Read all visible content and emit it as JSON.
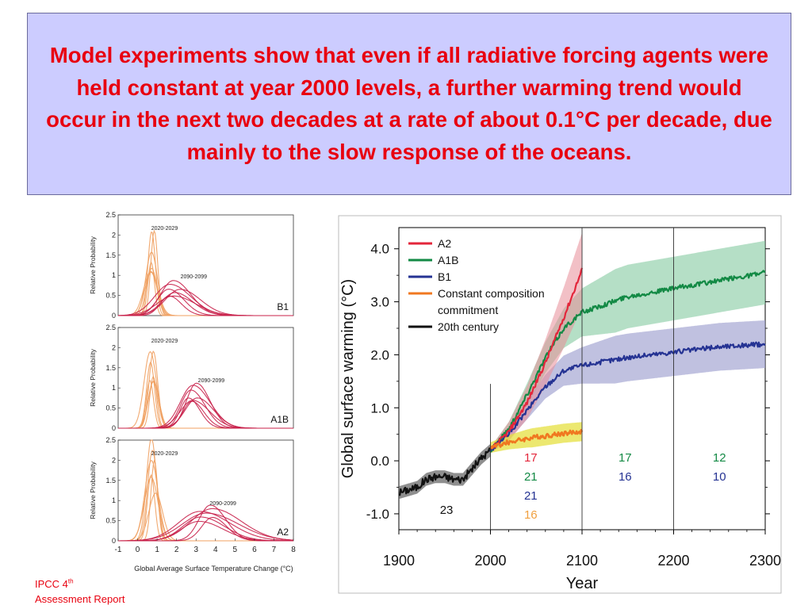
{
  "header": {
    "text": "Model experiments show that even if all radiative forcing agents were held constant at year 2000 levels, a further warming trend would occur in the next two decades at a rate of about 0.1°C per decade, due mainly to the slow response of the oceans."
  },
  "footer": {
    "source": "IPCC 4",
    "source_sup": "th",
    "source_line2": "Assessment Report"
  },
  "colors": {
    "title_red": "#e8000f",
    "header_bg": "#ccccff",
    "a2": "#e3263b",
    "a1b": "#138a45",
    "b1": "#253393",
    "commit": "#f07820",
    "c20": "#111111",
    "pdf_early": "#f0a060",
    "pdf_late": "#c8204a"
  },
  "chart_data": [
    {
      "type": "line",
      "panel": "pdf-B1",
      "ylabel": "Relative Probability",
      "panel_label": "B1",
      "annotations": [
        "2020-2029",
        "2090-2099"
      ],
      "ylim": [
        0,
        2.5
      ],
      "yticks": [
        "0",
        "0.5",
        "1",
        "1.5",
        "2",
        "2.5"
      ],
      "xlim": [
        -1,
        8
      ],
      "series": [
        {
          "period": "2020-2029",
          "peak_x": 0.75,
          "peak_y": 2.1,
          "width": 0.3
        },
        {
          "period": "2090-2099",
          "peak_x": 1.9,
          "peak_y": 0.85,
          "width": 0.8
        }
      ]
    },
    {
      "type": "line",
      "panel": "pdf-A1B",
      "ylabel": "Relative Probability",
      "panel_label": "A1B",
      "annotations": [
        "2020-2029",
        "2090-2099"
      ],
      "ylim": [
        0,
        2.5
      ],
      "yticks": [
        "0",
        "0.5",
        "1",
        "1.5",
        "2",
        "2.5"
      ],
      "xlim": [
        -1,
        8
      ],
      "series": [
        {
          "period": "2020-2029",
          "peak_x": 0.75,
          "peak_y": 2.0,
          "width": 0.3
        },
        {
          "period": "2090-2099",
          "peak_x": 2.8,
          "peak_y": 1.1,
          "width": 0.7
        }
      ]
    },
    {
      "type": "line",
      "panel": "pdf-A2",
      "ylabel": "Relative Probability",
      "panel_label": "A2",
      "annotations": [
        "2020-2029",
        "2090-2099"
      ],
      "ylim": [
        0,
        2.5
      ],
      "yticks": [
        "0",
        "0.5",
        "1",
        "1.5",
        "2",
        "2.5"
      ],
      "xlim": [
        -1,
        8
      ],
      "xticks": [
        "-1",
        "0",
        "1",
        "2",
        "3",
        "4",
        "5",
        "6",
        "7",
        "8"
      ],
      "xlabel": "Global Average Surface Temperature Change (°C)",
      "series": [
        {
          "period": "2020-2029",
          "peak_x": 0.8,
          "peak_y": 2.5,
          "width": 0.3
        },
        {
          "period": "2090-2099",
          "peak_x": 3.4,
          "peak_y": 0.85,
          "width": 1.0
        }
      ]
    },
    {
      "type": "line",
      "panel": "projections",
      "ylabel": "Global surface warming (°C)",
      "xlabel": "Year",
      "xlim": [
        1900,
        2300
      ],
      "ylim": [
        -1.3,
        4.4
      ],
      "xticks": [
        "1900",
        "2000",
        "2100",
        "2200",
        "2300"
      ],
      "yticks": [
        "-1.0",
        "0.0",
        "1.0",
        "2.0",
        "3.0",
        "4.0"
      ],
      "legend_position": "top-left",
      "series": [
        {
          "name": "A2",
          "x": [
            2000,
            2020,
            2040,
            2060,
            2080,
            2100
          ],
          "y": [
            0.2,
            0.55,
            1.1,
            1.85,
            2.7,
            3.6
          ]
        },
        {
          "name": "A1B",
          "x": [
            2000,
            2020,
            2040,
            2060,
            2080,
            2100,
            2150,
            2200,
            2250,
            2300
          ],
          "y": [
            0.2,
            0.6,
            1.25,
            1.95,
            2.5,
            2.8,
            3.1,
            3.25,
            3.4,
            3.55
          ]
        },
        {
          "name": "B1",
          "x": [
            2000,
            2020,
            2040,
            2060,
            2080,
            2100,
            2150,
            2200,
            2250,
            2300
          ],
          "y": [
            0.2,
            0.5,
            0.95,
            1.4,
            1.7,
            1.8,
            1.95,
            2.05,
            2.15,
            2.2
          ]
        },
        {
          "name": "Constant composition commitment",
          "x": [
            2000,
            2020,
            2040,
            2060,
            2080,
            2100
          ],
          "y": [
            0.25,
            0.35,
            0.42,
            0.47,
            0.52,
            0.55
          ]
        },
        {
          "name": "20th century",
          "x": [
            1900,
            1910,
            1920,
            1930,
            1940,
            1950,
            1960,
            1970,
            1980,
            1990,
            2000
          ],
          "y": [
            -0.6,
            -0.55,
            -0.5,
            -0.35,
            -0.3,
            -0.3,
            -0.35,
            -0.35,
            -0.15,
            0.05,
            0.2
          ]
        }
      ],
      "model_counts": [
        {
          "period": "20th century",
          "values": [
            {
              "text": "23",
              "series": "20th century"
            }
          ]
        },
        {
          "period": "2000-2100",
          "values": [
            {
              "text": "17",
              "series": "A2"
            },
            {
              "text": "21",
              "series": "A1B"
            },
            {
              "text": "21",
              "series": "B1"
            },
            {
              "text": "16",
              "series": "Constant composition commitment"
            }
          ]
        },
        {
          "period": "2100-2200",
          "values": [
            {
              "text": "17",
              "series": "A1B"
            },
            {
              "text": "16",
              "series": "B1"
            }
          ]
        },
        {
          "period": "2200-2300",
          "values": [
            {
              "text": "12",
              "series": "A1B"
            },
            {
              "text": "10",
              "series": "B1"
            }
          ]
        }
      ]
    }
  ]
}
